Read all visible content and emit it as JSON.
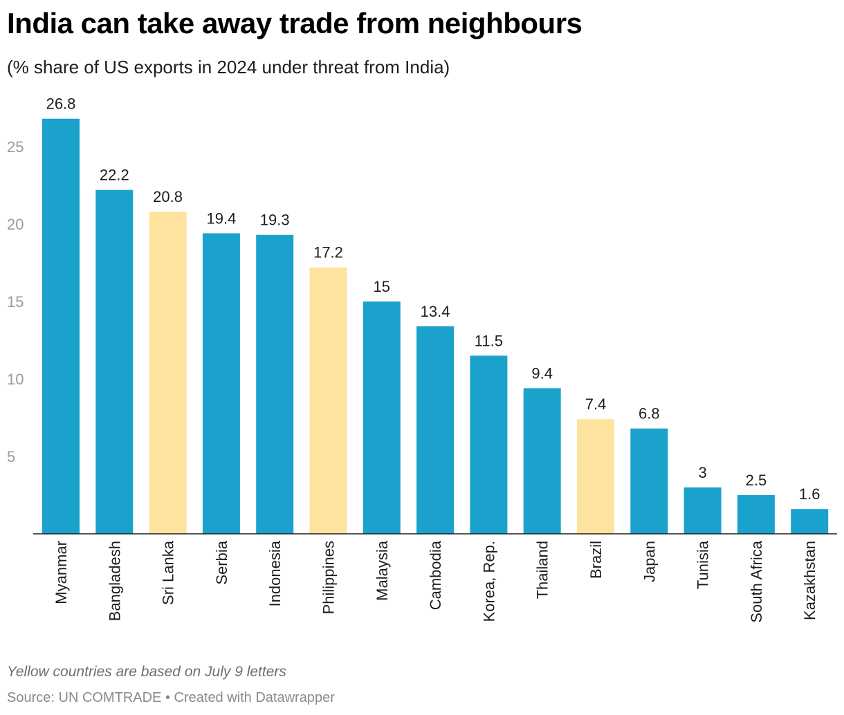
{
  "header": {
    "title": "India can take away trade from neighbours",
    "subtitle": "(% share of US exports in 2024 under threat from India)"
  },
  "footer": {
    "note": "Yellow countries are based on July 9 letters",
    "source_label": "Source:",
    "source_name": "UN COMTRADE",
    "separator": "•",
    "credit": "Created with Datawrapper"
  },
  "colors": {
    "default_bar": "#1aa2cd",
    "highlight_bar": "#fee39e",
    "axis": "#1d1d1d"
  },
  "chart_data": {
    "type": "bar",
    "title": "India can take away trade from neighbours",
    "subtitle": "(% share of US exports in 2024 under threat from India)",
    "xlabel": "",
    "ylabel": "",
    "ylim": [
      0,
      27.5
    ],
    "yticks": [
      "5",
      "10",
      "15",
      "20",
      "25"
    ],
    "grid": false,
    "legend": "none",
    "categories": [
      "Myanmar",
      "Bangladesh",
      "Sri Lanka",
      "Serbia",
      "Indonesia",
      "Philippines",
      "Malaysia",
      "Cambodia",
      "Korea, Rep.",
      "Thailand",
      "Brazil",
      "Japan",
      "Tunisia",
      "South Africa",
      "Kazakhstan"
    ],
    "values": [
      26.8,
      22.2,
      20.8,
      19.4,
      19.3,
      17.2,
      15,
      13.4,
      11.5,
      9.4,
      7.4,
      6.8,
      3,
      2.5,
      1.6
    ],
    "value_labels": [
      "26.8",
      "22.2",
      "20.8",
      "19.4",
      "19.3",
      "17.2",
      "15",
      "13.4",
      "11.5",
      "9.4",
      "7.4",
      "6.8",
      "3",
      "2.5",
      "1.6"
    ],
    "highlighted": [
      false,
      false,
      true,
      false,
      false,
      true,
      false,
      false,
      false,
      false,
      true,
      false,
      false,
      false,
      false
    ]
  }
}
